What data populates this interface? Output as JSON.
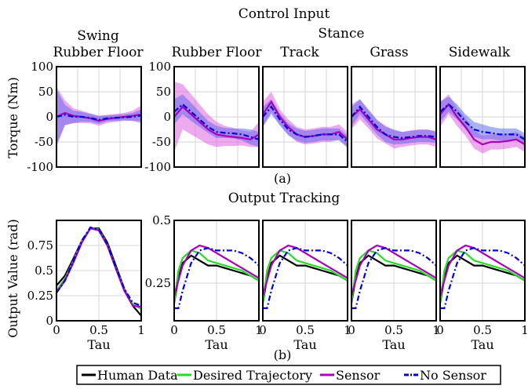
{
  "figure": {
    "title_top": "Control Input",
    "title_stance": "Stance",
    "title_swing": "Swing",
    "title_bottom": "Output Tracking",
    "caption_a": "(a)",
    "caption_b": "(b)",
    "ylabel_top": "Torque (Nm)",
    "ylabel_bottom": "Output Value (rad)",
    "xlabel": "Tau"
  },
  "legend": [
    "Human Data",
    "Desired Trajectory",
    "Sensor",
    "No Sensor"
  ],
  "colors": {
    "human": "#000000",
    "desired": "#22dd22",
    "sensor": "#aa00bb",
    "nosensor": "#0000dd",
    "band_sensor": "#dd55dd",
    "band_nosensor": "#5566ee"
  },
  "chart_data": [
    {
      "type": "line",
      "title": "Rubber Floor",
      "group": "Swing",
      "ylabel": "Torque (Nm)",
      "ylim": [
        -100,
        100
      ],
      "yticks": [
        -100,
        -50,
        0,
        50,
        100
      ],
      "x": [
        0,
        0.1,
        0.2,
        0.3,
        0.4,
        0.5,
        0.6,
        0.7,
        0.8,
        0.9,
        1
      ],
      "series": [
        {
          "name": "Sensor",
          "values": [
            0,
            8,
            2,
            0,
            -3,
            -8,
            -4,
            -2,
            0,
            2,
            5
          ],
          "band": [
            60,
            25,
            15,
            12,
            10,
            10,
            8,
            8,
            8,
            10,
            18
          ]
        },
        {
          "name": "No Sensor",
          "values": [
            0,
            4,
            0,
            0,
            -2,
            -6,
            -3,
            -2,
            -1,
            0,
            3
          ],
          "band": [
            55,
            20,
            12,
            10,
            8,
            8,
            6,
            6,
            6,
            8,
            12
          ]
        }
      ]
    },
    {
      "type": "line",
      "title": "Rubber Floor",
      "group": "Stance",
      "ylim": [
        -100,
        100
      ],
      "x": [
        0,
        0.1,
        0.2,
        0.3,
        0.4,
        0.5,
        0.6,
        0.7,
        0.8,
        0.9,
        1
      ],
      "series": [
        {
          "name": "Sensor",
          "values": [
            0,
            20,
            5,
            -10,
            -25,
            -35,
            -38,
            -40,
            -42,
            -45,
            -35
          ],
          "band": [
            70,
            45,
            40,
            35,
            30,
            25,
            20,
            18,
            15,
            15,
            25
          ]
        },
        {
          "name": "No Sensor",
          "values": [
            10,
            25,
            10,
            -5,
            -20,
            -30,
            -32,
            -33,
            -35,
            -40,
            -45
          ],
          "band": [
            25,
            20,
            18,
            15,
            12,
            12,
            10,
            10,
            12,
            15,
            15
          ]
        }
      ]
    },
    {
      "type": "line",
      "title": "Track",
      "group": "Stance",
      "ylim": [
        -100,
        100
      ],
      "x": [
        0,
        0.1,
        0.2,
        0.3,
        0.4,
        0.5,
        0.6,
        0.7,
        0.8,
        0.9,
        1
      ],
      "series": [
        {
          "name": "Sensor",
          "values": [
            5,
            30,
            0,
            -20,
            -35,
            -40,
            -38,
            -35,
            -35,
            -30,
            -45
          ],
          "band": [
            25,
            20,
            15,
            15,
            15,
            15,
            15,
            15,
            15,
            15,
            15
          ]
        },
        {
          "name": "No Sensor",
          "values": [
            0,
            20,
            -5,
            -25,
            -35,
            -40,
            -38,
            -35,
            -35,
            -35,
            -50
          ],
          "band": [
            20,
            15,
            12,
            12,
            12,
            12,
            12,
            12,
            12,
            12,
            12
          ]
        }
      ]
    },
    {
      "type": "line",
      "title": "Grass",
      "group": "Stance",
      "ylim": [
        -100,
        100
      ],
      "x": [
        0,
        0.1,
        0.2,
        0.3,
        0.4,
        0.5,
        0.6,
        0.7,
        0.8,
        0.9,
        1
      ],
      "series": [
        {
          "name": "Sensor",
          "values": [
            0,
            15,
            -5,
            -25,
            -35,
            -45,
            -45,
            -42,
            -40,
            -40,
            -45
          ],
          "band": [
            25,
            20,
            18,
            18,
            18,
            18,
            15,
            15,
            15,
            15,
            15
          ]
        },
        {
          "name": "No Sensor",
          "values": [
            0,
            20,
            0,
            -20,
            -35,
            -40,
            -42,
            -40,
            -38,
            -38,
            -40
          ],
          "band": [
            20,
            15,
            15,
            15,
            15,
            15,
            12,
            12,
            12,
            12,
            12
          ]
        }
      ]
    },
    {
      "type": "line",
      "title": "Sidewalk",
      "group": "Stance",
      "ylim": [
        -100,
        100
      ],
      "x": [
        0,
        0.1,
        0.2,
        0.3,
        0.4,
        0.5,
        0.6,
        0.7,
        0.8,
        0.9,
        1
      ],
      "series": [
        {
          "name": "Sensor",
          "values": [
            5,
            25,
            0,
            -20,
            -45,
            -55,
            -50,
            -50,
            -48,
            -45,
            -55
          ],
          "band": [
            25,
            20,
            18,
            18,
            18,
            18,
            15,
            15,
            15,
            15,
            15
          ]
        },
        {
          "name": "No Sensor",
          "values": [
            10,
            25,
            10,
            -10,
            -25,
            -30,
            -32,
            -35,
            -35,
            -35,
            -45
          ],
          "band": [
            20,
            15,
            15,
            15,
            15,
            15,
            12,
            12,
            12,
            12,
            12
          ]
        }
      ]
    },
    {
      "type": "line",
      "xlabel": "Tau",
      "ylabel": "Output Value (rad)",
      "ylim": [
        0,
        1
      ],
      "xlim": [
        0,
        1
      ],
      "yticks": [
        0,
        0.25,
        0.5,
        0.75
      ],
      "xticks": [
        0,
        0.5,
        1
      ],
      "x": [
        0,
        0.1,
        0.2,
        0.3,
        0.4,
        0.5,
        0.6,
        0.7,
        0.8,
        0.9,
        1
      ],
      "series": [
        {
          "name": "Human Data",
          "values": [
            0.35,
            0.45,
            0.62,
            0.8,
            0.92,
            0.92,
            0.78,
            0.55,
            0.32,
            0.15,
            0.05
          ]
        },
        {
          "name": "Desired Trajectory",
          "values": [
            0.3,
            0.42,
            0.6,
            0.8,
            0.92,
            0.91,
            0.76,
            0.53,
            0.32,
            0.16,
            0.12
          ]
        },
        {
          "name": "Sensor",
          "values": [
            0.28,
            0.4,
            0.58,
            0.78,
            0.92,
            0.9,
            0.75,
            0.52,
            0.3,
            0.15,
            0.14
          ]
        },
        {
          "name": "No Sensor",
          "values": [
            0.28,
            0.4,
            0.6,
            0.8,
            0.93,
            0.91,
            0.76,
            0.53,
            0.32,
            0.18,
            0.15
          ]
        }
      ]
    },
    {
      "type": "line",
      "xlabel": "Tau",
      "ylim": [
        0.1,
        0.5
      ],
      "xlim": [
        0,
        1
      ],
      "yticks": [
        0.25,
        0.5
      ],
      "xticks": [
        0,
        0.5,
        1
      ],
      "x": [
        0,
        0.05,
        0.1,
        0.2,
        0.3,
        0.4,
        0.5,
        0.6,
        0.7,
        0.8,
        0.9,
        1
      ],
      "series": [
        {
          "name": "Human Data",
          "values": [
            0.17,
            0.27,
            0.33,
            0.36,
            0.34,
            0.32,
            0.32,
            0.31,
            0.3,
            0.29,
            0.28,
            0.26
          ]
        },
        {
          "name": "Desired Trajectory",
          "values": [
            0.17,
            0.3,
            0.35,
            0.38,
            0.37,
            0.34,
            0.33,
            0.32,
            0.31,
            0.3,
            0.28,
            0.26
          ]
        },
        {
          "name": "Sensor",
          "values": [
            0.2,
            0.26,
            0.32,
            0.38,
            0.4,
            0.39,
            0.37,
            0.35,
            0.33,
            0.31,
            0.29,
            0.27
          ]
        },
        {
          "name": "No Sensor",
          "values": [
            0.15,
            0.15,
            0.22,
            0.33,
            0.38,
            0.39,
            0.38,
            0.38,
            0.38,
            0.37,
            0.35,
            0.32
          ]
        }
      ]
    },
    {
      "type": "line",
      "xlabel": "Tau",
      "ylim": [
        0.1,
        0.5
      ],
      "xlim": [
        0,
        1
      ],
      "xticks": [
        0,
        0.5,
        1
      ],
      "x": [
        0,
        0.05,
        0.1,
        0.2,
        0.3,
        0.4,
        0.5,
        0.6,
        0.7,
        0.8,
        0.9,
        1
      ],
      "series": [
        {
          "name": "Human Data",
          "values": [
            0.17,
            0.27,
            0.33,
            0.36,
            0.34,
            0.32,
            0.32,
            0.31,
            0.3,
            0.29,
            0.28,
            0.26
          ]
        },
        {
          "name": "Desired Trajectory",
          "values": [
            0.17,
            0.3,
            0.35,
            0.38,
            0.37,
            0.34,
            0.33,
            0.32,
            0.31,
            0.3,
            0.28,
            0.26
          ]
        },
        {
          "name": "Sensor",
          "values": [
            0.2,
            0.26,
            0.32,
            0.38,
            0.4,
            0.39,
            0.37,
            0.35,
            0.33,
            0.31,
            0.29,
            0.27
          ]
        },
        {
          "name": "No Sensor",
          "values": [
            0.15,
            0.15,
            0.22,
            0.33,
            0.38,
            0.39,
            0.38,
            0.38,
            0.38,
            0.37,
            0.35,
            0.32
          ]
        }
      ]
    },
    {
      "type": "line",
      "xlabel": "Tau",
      "ylim": [
        0.1,
        0.5
      ],
      "xlim": [
        0,
        1
      ],
      "xticks": [
        0,
        0.5,
        1
      ],
      "x": [
        0,
        0.05,
        0.1,
        0.2,
        0.3,
        0.4,
        0.5,
        0.6,
        0.7,
        0.8,
        0.9,
        1
      ],
      "series": [
        {
          "name": "Human Data",
          "values": [
            0.17,
            0.27,
            0.33,
            0.36,
            0.34,
            0.32,
            0.32,
            0.31,
            0.3,
            0.29,
            0.28,
            0.26
          ]
        },
        {
          "name": "Desired Trajectory",
          "values": [
            0.17,
            0.3,
            0.35,
            0.38,
            0.37,
            0.34,
            0.33,
            0.32,
            0.31,
            0.3,
            0.28,
            0.26
          ]
        },
        {
          "name": "Sensor",
          "values": [
            0.2,
            0.26,
            0.32,
            0.38,
            0.4,
            0.39,
            0.37,
            0.35,
            0.33,
            0.31,
            0.29,
            0.27
          ]
        },
        {
          "name": "No Sensor",
          "values": [
            0.15,
            0.15,
            0.22,
            0.33,
            0.38,
            0.39,
            0.38,
            0.38,
            0.38,
            0.37,
            0.35,
            0.32
          ]
        }
      ]
    },
    {
      "type": "line",
      "xlabel": "Tau",
      "ylim": [
        0.1,
        0.5
      ],
      "xlim": [
        0,
        1
      ],
      "xticks": [
        0,
        0.5,
        1
      ],
      "x": [
        0,
        0.05,
        0.1,
        0.2,
        0.3,
        0.4,
        0.5,
        0.6,
        0.7,
        0.8,
        0.9,
        1
      ],
      "series": [
        {
          "name": "Human Data",
          "values": [
            0.17,
            0.27,
            0.33,
            0.36,
            0.34,
            0.32,
            0.32,
            0.31,
            0.3,
            0.29,
            0.28,
            0.26
          ]
        },
        {
          "name": "Desired Trajectory",
          "values": [
            0.17,
            0.3,
            0.35,
            0.38,
            0.37,
            0.34,
            0.33,
            0.32,
            0.31,
            0.3,
            0.28,
            0.26
          ]
        },
        {
          "name": "Sensor",
          "values": [
            0.2,
            0.26,
            0.32,
            0.38,
            0.4,
            0.39,
            0.37,
            0.35,
            0.33,
            0.31,
            0.29,
            0.27
          ]
        },
        {
          "name": "No Sensor",
          "values": [
            0.15,
            0.15,
            0.22,
            0.33,
            0.38,
            0.39,
            0.38,
            0.38,
            0.38,
            0.37,
            0.35,
            0.32
          ]
        }
      ]
    }
  ]
}
